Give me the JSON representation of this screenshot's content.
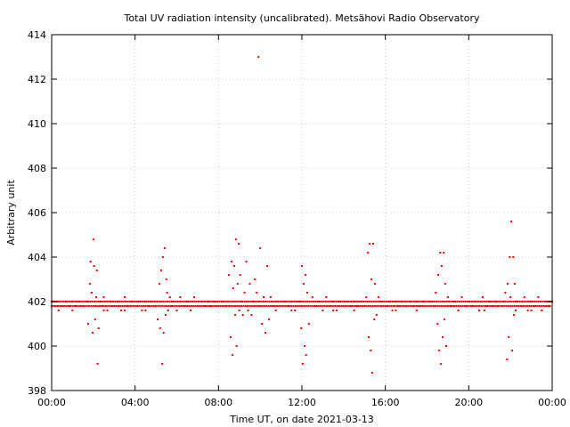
{
  "chart_data": {
    "type": "scatter",
    "title": "Total UV radiation intensity (uncalibrated). Metsähovi Radio Observatory",
    "xlabel": "Time UT, on date 2021-03-13",
    "ylabel": "Arbitrary unit",
    "xlim": [
      "00:00",
      "24:00"
    ],
    "ylim": [
      398,
      414
    ],
    "x_ticks": [
      "00:00",
      "04:00",
      "08:00",
      "12:00",
      "16:00",
      "20:00",
      "00:00"
    ],
    "y_ticks": [
      "398",
      "400",
      "402",
      "404",
      "406",
      "408",
      "410",
      "412",
      "414"
    ],
    "grid": true,
    "marker_color": "#ff0000",
    "series": [
      {
        "x": [
          "00:00",
          "00:10",
          "00:20",
          "00:30",
          "00:40",
          "00:50",
          "01:00",
          "01:10",
          "01:20",
          "01:30",
          "01:40",
          "01:45",
          "01:50",
          "01:52",
          "01:55",
          "01:58",
          "02:00",
          "02:02",
          "02:05",
          "02:08",
          "02:10",
          "02:12",
          "02:15",
          "02:20",
          "02:25",
          "02:30",
          "02:40",
          "02:50",
          "03:00",
          "03:10",
          "03:20",
          "03:30",
          "03:40",
          "03:50",
          "04:00",
          "04:10",
          "04:20",
          "04:30",
          "04:40",
          "04:50",
          "05:00",
          "05:05",
          "05:10",
          "05:12",
          "05:15",
          "05:18",
          "05:20",
          "05:22",
          "05:25",
          "05:28",
          "05:30",
          "05:32",
          "05:35",
          "05:40",
          "05:45",
          "05:50",
          "06:00",
          "06:10",
          "06:20",
          "06:30",
          "06:40",
          "06:50",
          "07:00",
          "07:10",
          "07:20",
          "07:30",
          "07:40",
          "07:50",
          "08:00",
          "08:10",
          "08:20",
          "08:30",
          "08:35",
          "08:38",
          "08:40",
          "08:42",
          "08:45",
          "08:48",
          "08:50",
          "08:52",
          "08:55",
          "08:58",
          "09:00",
          "09:02",
          "09:05",
          "09:10",
          "09:15",
          "09:20",
          "09:25",
          "09:30",
          "09:35",
          "09:40",
          "09:45",
          "09:50",
          "09:55",
          "10:00",
          "10:05",
          "10:10",
          "10:15",
          "10:20",
          "10:25",
          "10:30",
          "10:40",
          "10:50",
          "11:00",
          "11:10",
          "11:20",
          "11:30",
          "11:40",
          "11:50",
          "11:55",
          "11:58",
          "12:00",
          "12:02",
          "12:05",
          "12:08",
          "12:10",
          "12:12",
          "12:15",
          "12:20",
          "12:30",
          "12:40",
          "12:50",
          "13:00",
          "13:10",
          "13:20",
          "13:30",
          "13:40",
          "13:50",
          "14:00",
          "14:10",
          "14:20",
          "14:30",
          "14:40",
          "14:50",
          "15:00",
          "15:05",
          "15:10",
          "15:12",
          "15:15",
          "15:18",
          "15:20",
          "15:22",
          "15:25",
          "15:28",
          "15:30",
          "15:35",
          "15:40",
          "15:50",
          "16:00",
          "16:10",
          "16:20",
          "16:30",
          "16:40",
          "16:50",
          "17:00",
          "17:10",
          "17:20",
          "17:30",
          "17:40",
          "17:50",
          "18:00",
          "18:10",
          "18:20",
          "18:25",
          "18:30",
          "18:32",
          "18:35",
          "18:38",
          "18:40",
          "18:42",
          "18:45",
          "18:48",
          "18:50",
          "18:52",
          "18:55",
          "19:00",
          "19:10",
          "19:20",
          "19:30",
          "19:40",
          "19:50",
          "20:00",
          "20:10",
          "20:20",
          "20:30",
          "20:40",
          "20:50",
          "21:00",
          "21:10",
          "21:20",
          "21:30",
          "21:40",
          "21:45",
          "21:50",
          "21:52",
          "21:55",
          "21:58",
          "22:00",
          "22:02",
          "22:05",
          "22:08",
          "22:10",
          "22:12",
          "22:15",
          "22:20",
          "22:30",
          "22:40",
          "22:50",
          "23:00",
          "23:10",
          "23:20",
          "23:30",
          "23:40",
          "23:50",
          "24:00",
          "00:20",
          "01:00",
          "02:30",
          "03:30",
          "04:30",
          "06:00",
          "06:30",
          "07:30",
          "10:45",
          "11:30",
          "13:30",
          "14:30",
          "16:30",
          "17:30",
          "19:30",
          "20:30",
          "20:45",
          "23:00",
          "23:30"
        ],
        "y": [
          402.0,
          401.8,
          402.0,
          401.8,
          402.0,
          401.8,
          402.0,
          401.8,
          402.0,
          401.8,
          402.0,
          401.0,
          402.8,
          403.8,
          402.4,
          400.6,
          404.8,
          403.6,
          401.2,
          402.2,
          403.4,
          399.2,
          400.8,
          402.0,
          401.8,
          402.2,
          401.6,
          402.0,
          401.8,
          402.0,
          401.6,
          402.2,
          401.8,
          402.0,
          401.8,
          402.0,
          401.6,
          402.0,
          401.8,
          402.0,
          401.8,
          401.2,
          402.8,
          400.8,
          403.4,
          399.2,
          404.0,
          400.6,
          404.4,
          401.4,
          403.0,
          402.4,
          401.6,
          402.2,
          401.8,
          402.0,
          401.6,
          402.2,
          401.8,
          402.0,
          401.6,
          402.2,
          401.8,
          402.0,
          401.8,
          402.0,
          401.8,
          402.0,
          401.8,
          402.0,
          401.8,
          403.2,
          400.4,
          403.8,
          399.6,
          402.6,
          403.6,
          401.4,
          404.8,
          400.0,
          402.8,
          404.6,
          401.6,
          403.2,
          402.0,
          401.4,
          402.4,
          403.8,
          401.6,
          402.8,
          401.4,
          402.0,
          403.0,
          402.4,
          401.8,
          404.4,
          401.0,
          402.2,
          400.6,
          403.6,
          401.2,
          402.2,
          401.8,
          402.0,
          401.8,
          402.0,
          401.8,
          402.0,
          401.6,
          402.0,
          402.0,
          400.8,
          403.6,
          399.2,
          402.8,
          400.0,
          403.2,
          399.6,
          402.4,
          401.0,
          402.2,
          401.8,
          402.0,
          401.6,
          402.2,
          401.8,
          402.0,
          401.6,
          402.0,
          401.8,
          402.0,
          401.8,
          402.0,
          401.8,
          402.0,
          401.8,
          402.2,
          404.2,
          400.4,
          404.6,
          399.8,
          403.0,
          398.8,
          404.6,
          401.2,
          402.8,
          401.4,
          402.2,
          402.0,
          401.8,
          402.0,
          401.6,
          402.0,
          401.8,
          402.0,
          401.8,
          402.0,
          401.8,
          402.0,
          401.8,
          402.0,
          401.8,
          402.0,
          401.8,
          402.4,
          401.0,
          403.2,
          399.8,
          404.2,
          399.2,
          403.6,
          400.4,
          404.2,
          401.2,
          402.8,
          400.0,
          402.2,
          401.8,
          402.0,
          401.6,
          402.2,
          401.8,
          402.0,
          401.8,
          402.0,
          401.6,
          402.2,
          401.8,
          402.0,
          401.8,
          402.0,
          401.8,
          402.0,
          402.4,
          399.4,
          402.8,
          400.4,
          404.0,
          402.2,
          405.6,
          399.8,
          404.0,
          401.4,
          402.8,
          401.6,
          402.0,
          401.8,
          402.2,
          401.6,
          402.0,
          401.8,
          402.2,
          401.6,
          402.0,
          401.8,
          402.0,
          401.6,
          401.6,
          401.6,
          401.6,
          401.6,
          401.6,
          401.8,
          401.8,
          401.6,
          401.6,
          401.6,
          401.6,
          401.6,
          401.6,
          401.6,
          401.6,
          401.6,
          401.6,
          401.6
        ],
        "outliers": {
          "x": [
            "09:55"
          ],
          "y": [
            413.0
          ]
        }
      }
    ]
  }
}
